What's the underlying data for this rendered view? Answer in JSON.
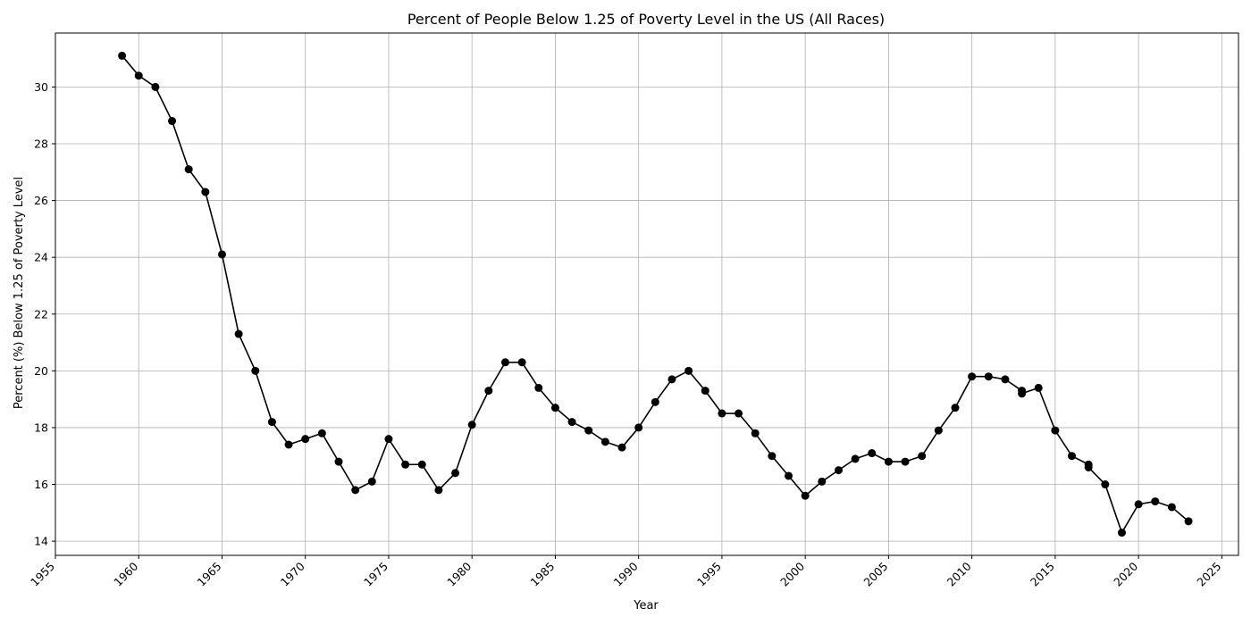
{
  "chart_data": {
    "type": "line",
    "title": "Percent of People Below 1.25 of Poverty Level in the US (All Races)",
    "xlabel": "Year",
    "ylabel": "Percent (%) Below 1.25 of Poverty Level",
    "xlim": [
      1955,
      2026
    ],
    "ylim": [
      13.5,
      31.9
    ],
    "x_ticks": [
      1955,
      1960,
      1965,
      1970,
      1975,
      1980,
      1985,
      1990,
      1995,
      2000,
      2005,
      2010,
      2015,
      2020,
      2025
    ],
    "x_tick_labels": [
      "1955",
      "1960",
      "1965",
      "1970",
      "1975",
      "1980",
      "1985",
      "1990",
      "1995",
      "2000",
      "2005",
      "2010",
      "2015",
      "2020",
      "2025"
    ],
    "y_ticks": [
      14,
      16,
      18,
      20,
      22,
      24,
      26,
      28,
      30
    ],
    "y_tick_labels": [
      "14",
      "16",
      "18",
      "20",
      "22",
      "24",
      "26",
      "28",
      "30"
    ],
    "grid": true,
    "legend": "none",
    "series": [
      {
        "color": "#000000",
        "marker": "circle",
        "x": [
          1959,
          1960,
          1961,
          1962,
          1963,
          1964,
          1965,
          1966,
          1967,
          1968,
          1969,
          1970,
          1971,
          1972,
          1973,
          1974,
          1975,
          1976,
          1977,
          1978,
          1979,
          1980,
          1981,
          1982,
          1983,
          1984,
          1985,
          1986,
          1987,
          1988,
          1989,
          1990,
          1991,
          1992,
          1993,
          1994,
          1995,
          1996,
          1997,
          1998,
          1999,
          2000,
          2001,
          2002,
          2003,
          2004,
          2005,
          2006,
          2007,
          2008,
          2009,
          2010,
          2011,
          2012,
          2013,
          2013,
          2014,
          2015,
          2016,
          2017,
          2017,
          2018,
          2019,
          2020,
          2021,
          2022,
          2023
        ],
        "y": [
          31.1,
          30.4,
          30.0,
          28.8,
          27.1,
          26.3,
          24.1,
          21.3,
          20.0,
          18.2,
          17.4,
          17.6,
          17.8,
          16.8,
          15.8,
          16.1,
          17.6,
          16.7,
          16.7,
          15.8,
          16.4,
          18.1,
          19.3,
          20.3,
          20.3,
          19.4,
          18.7,
          18.2,
          17.9,
          17.5,
          17.3,
          18.0,
          18.9,
          19.7,
          20.0,
          19.3,
          18.5,
          18.5,
          17.8,
          17.0,
          16.3,
          15.6,
          16.1,
          16.5,
          16.9,
          17.1,
          16.8,
          16.8,
          17.0,
          17.9,
          18.7,
          19.8,
          19.8,
          19.7,
          19.3,
          19.2,
          19.4,
          17.9,
          17.0,
          16.7,
          16.6,
          16.0,
          14.3,
          15.3,
          15.4,
          15.2,
          14.7
        ]
      }
    ]
  }
}
